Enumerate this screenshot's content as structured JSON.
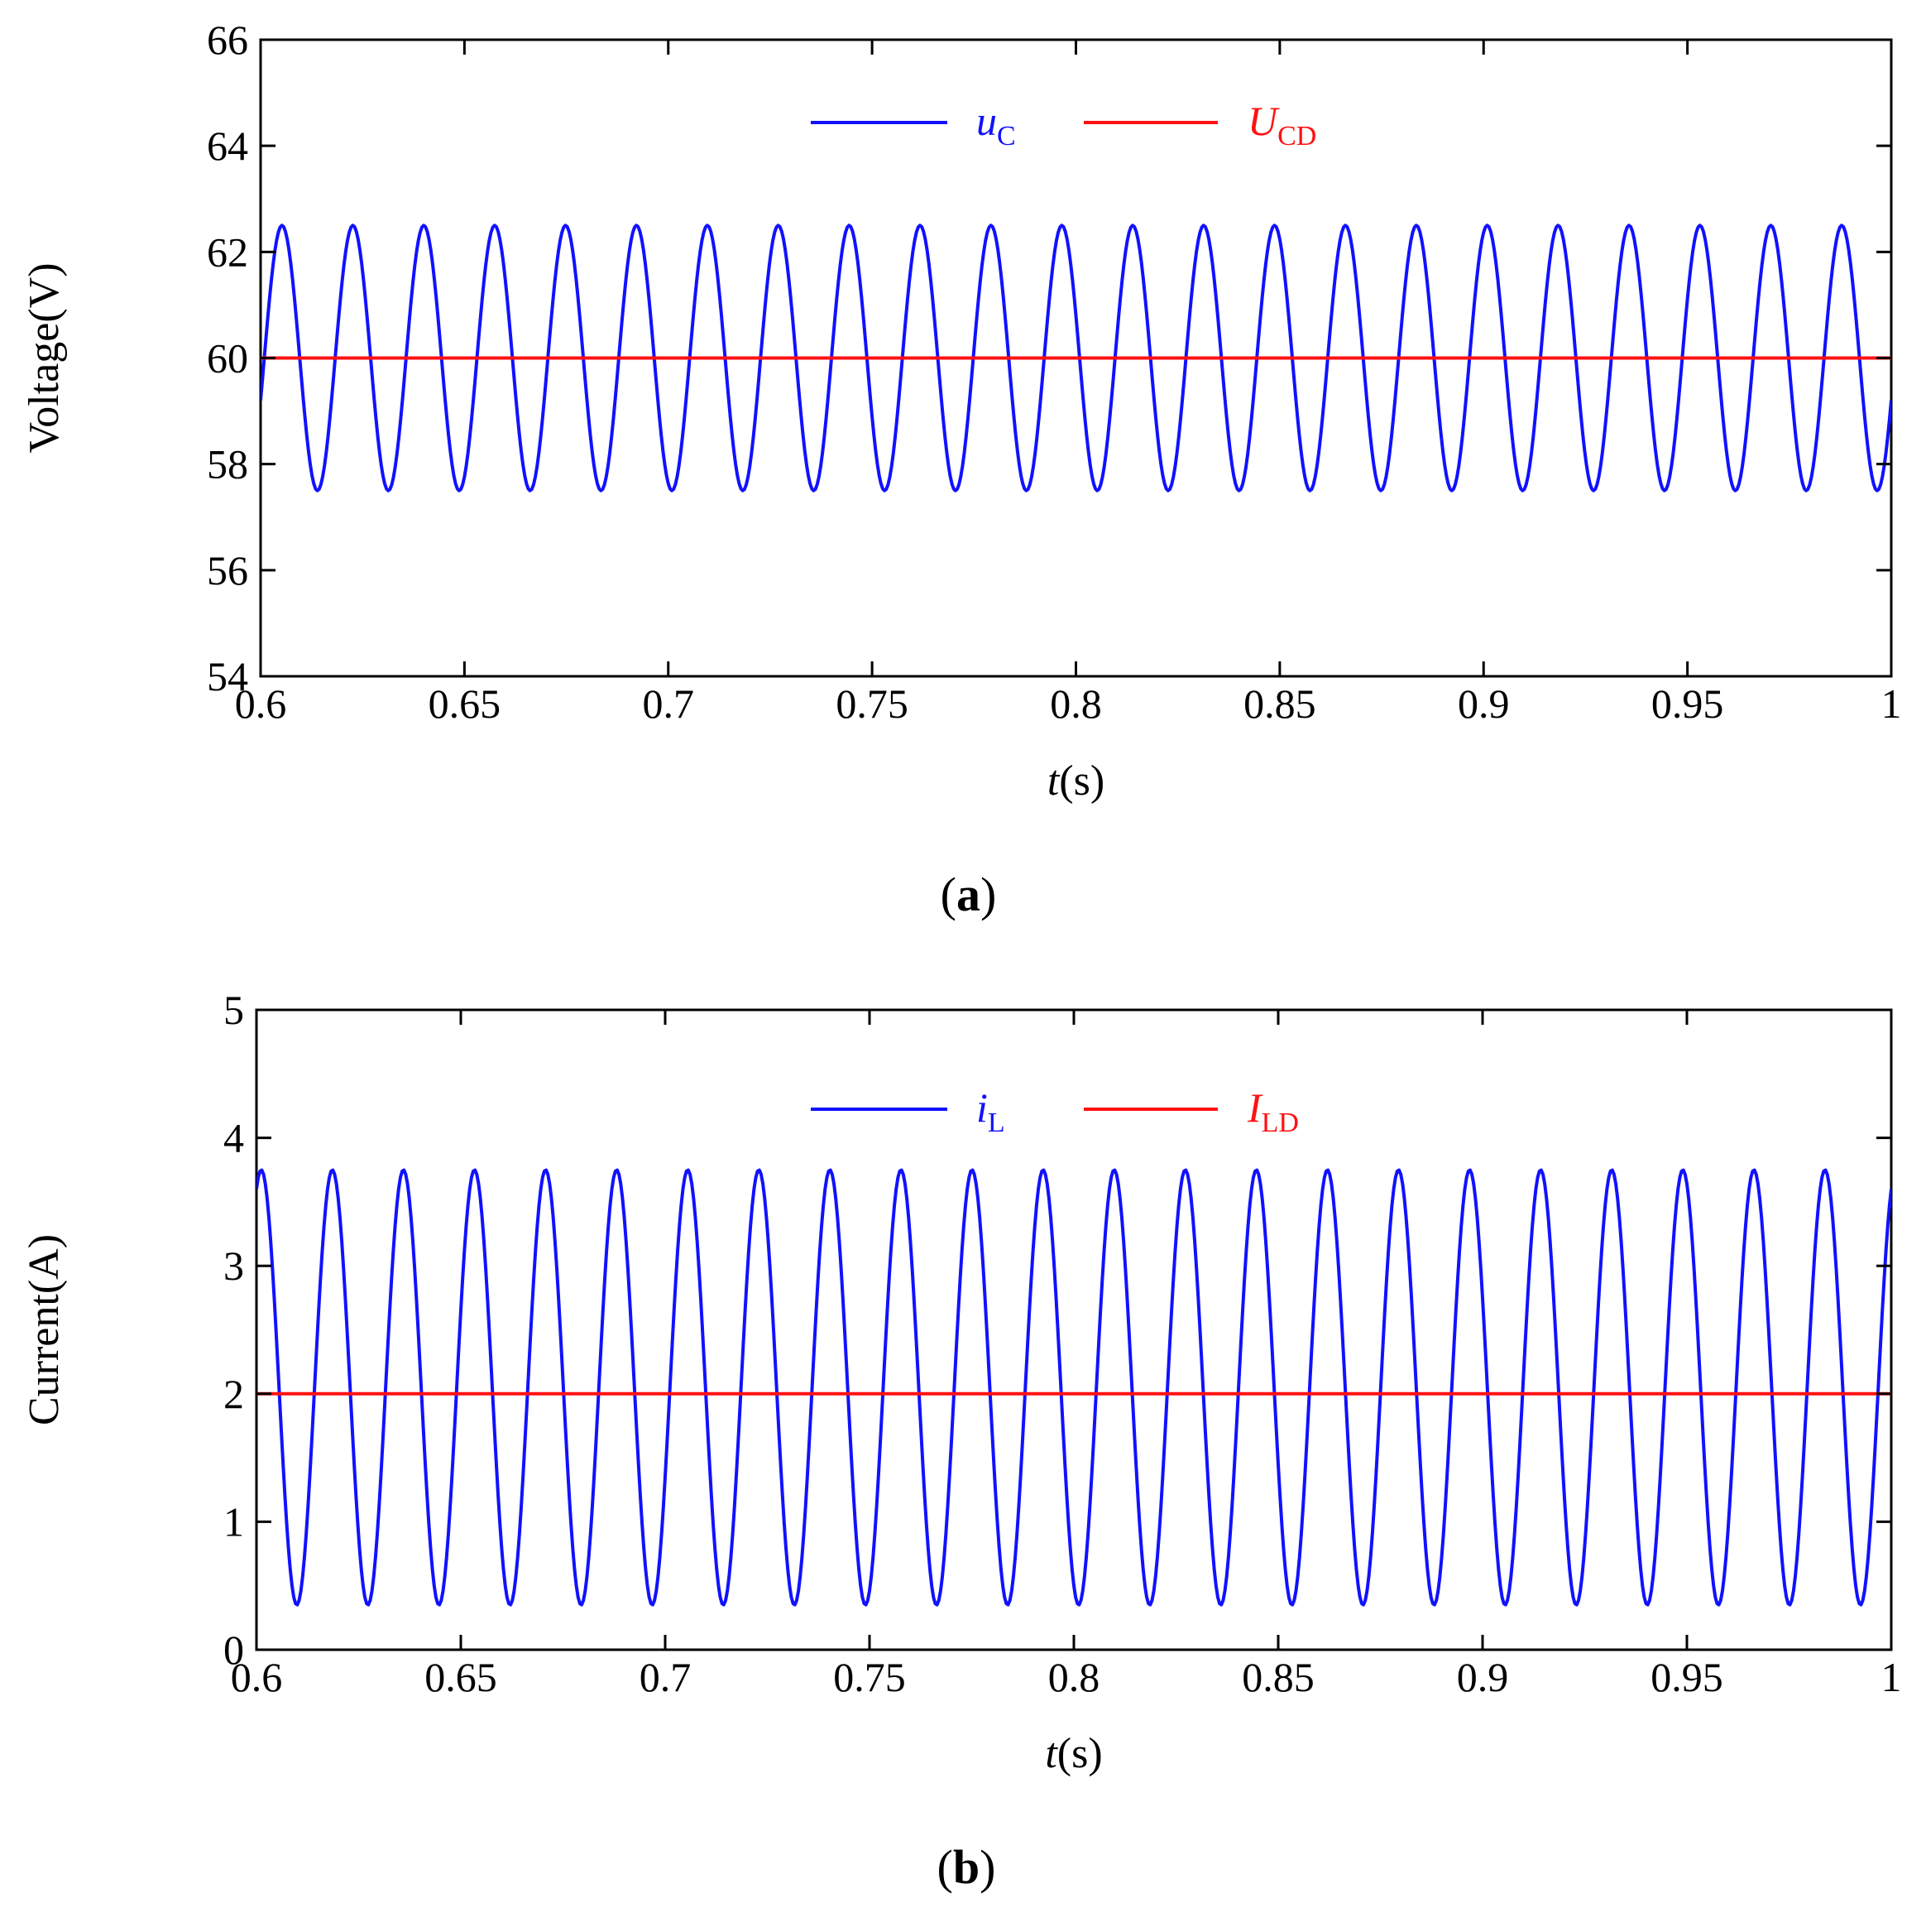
{
  "colors": {
    "series_blue": "#1111ff",
    "series_red": "#ff1111",
    "axis": "#000000"
  },
  "chart_data": [
    {
      "id": "a",
      "type": "line",
      "panel_label": "a",
      "xlabel_italic": "t",
      "xlabel_unit": "(s)",
      "ylabel": "Voltage(V)",
      "xlim": [
        0.6,
        1.0
      ],
      "ylim": [
        54,
        66
      ],
      "xticks": [
        0.6,
        0.65,
        0.7,
        0.75,
        0.8,
        0.85,
        0.9,
        0.95,
        1.0
      ],
      "xtick_labels": [
        "0.6",
        "0.65",
        "0.7",
        "0.75",
        "0.8",
        "0.85",
        "0.9",
        "0.95",
        "1"
      ],
      "yticks": [
        54,
        56,
        58,
        60,
        62,
        64,
        66
      ],
      "ytick_labels": [
        "54",
        "56",
        "58",
        "60",
        "62",
        "64",
        "66"
      ],
      "legend_position": "top-center",
      "series": [
        {
          "name": "uC",
          "legend_main": "u",
          "legend_sub": "C",
          "color": "#1111ff",
          "kind": "sine",
          "mean": 60,
          "amplitude": 2.5,
          "frequency_hz": 57.5,
          "start_x": 0.6,
          "start_value": 59.2,
          "start_direction": "rising",
          "samples_per_period": 40
        },
        {
          "name": "UCD",
          "legend_main": "U",
          "legend_sub": "CD",
          "color": "#ff1111",
          "kind": "constant",
          "value": 60
        }
      ]
    },
    {
      "id": "b",
      "type": "line",
      "panel_label": "b",
      "xlabel_italic": "t",
      "xlabel_unit": "(s)",
      "ylabel": "Current(A)",
      "xlim": [
        0.6,
        1.0
      ],
      "ylim": [
        0,
        5
      ],
      "xticks": [
        0.6,
        0.65,
        0.7,
        0.75,
        0.8,
        0.85,
        0.9,
        0.95,
        1.0
      ],
      "xtick_labels": [
        "0.6",
        "0.65",
        "0.7",
        "0.75",
        "0.8",
        "0.85",
        "0.9",
        "0.95",
        "1"
      ],
      "yticks": [
        0,
        1,
        2,
        3,
        4,
        5
      ],
      "ytick_labels": [
        "0",
        "1",
        "2",
        "3",
        "4",
        "5"
      ],
      "legend_position": "top-center",
      "series": [
        {
          "name": "iL",
          "legend_main": "i",
          "legend_sub": "L",
          "color": "#1111ff",
          "kind": "sine",
          "mean": 2.05,
          "amplitude": 1.7,
          "frequency_hz": 57.5,
          "start_x": 0.6,
          "start_value": 3.6,
          "start_direction": "rising",
          "samples_per_period": 40
        },
        {
          "name": "ILD",
          "legend_main": "I",
          "legend_sub": "LD",
          "color": "#ff1111",
          "kind": "constant",
          "value": 2
        }
      ]
    }
  ]
}
